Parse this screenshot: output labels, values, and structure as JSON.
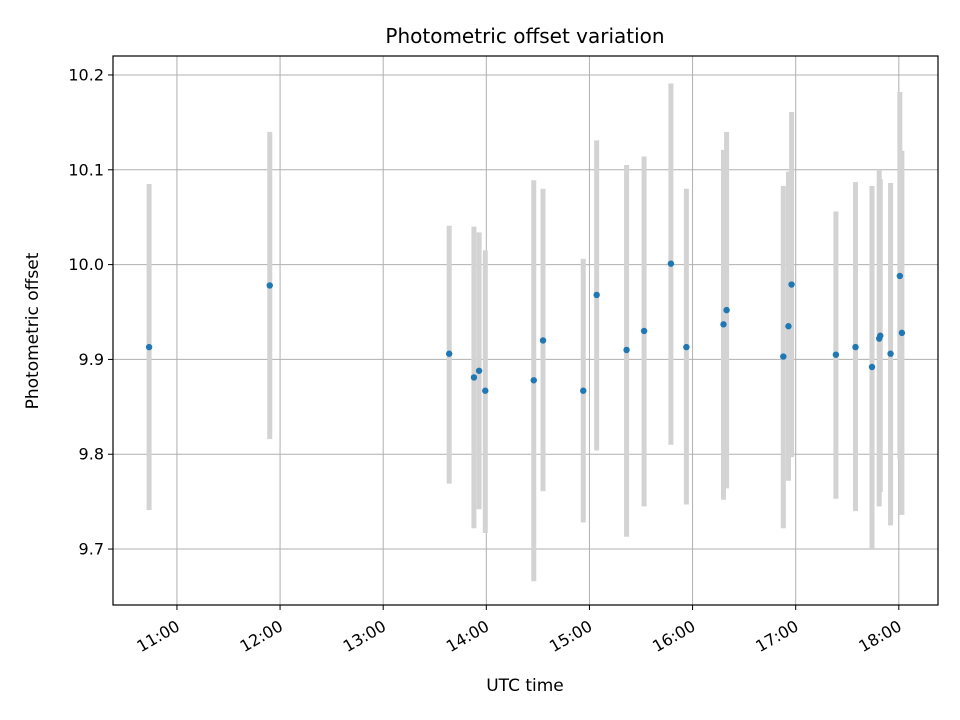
{
  "chart_data": {
    "type": "scatter",
    "title": "Photometric offset variation",
    "xlabel": "UTC time",
    "ylabel": "Photometric offset",
    "x_unit": "hours UTC",
    "xlim": [
      10.38,
      18.38
    ],
    "ylim": [
      9.641,
      10.22
    ],
    "grid": true,
    "colors": {
      "point": "#1f77b4",
      "errorbar": "#d3d3d3",
      "grid": "#b0b0b0"
    },
    "x_ticks": [
      {
        "value": 11,
        "label": "11:00"
      },
      {
        "value": 12,
        "label": "12:00"
      },
      {
        "value": 13,
        "label": "13:00"
      },
      {
        "value": 14,
        "label": "14:00"
      },
      {
        "value": 15,
        "label": "15:00"
      },
      {
        "value": 16,
        "label": "16:00"
      },
      {
        "value": 17,
        "label": "17:00"
      },
      {
        "value": 18,
        "label": "18:00"
      }
    ],
    "y_ticks": [
      {
        "value": 9.7,
        "label": "9.7"
      },
      {
        "value": 9.8,
        "label": "9.8"
      },
      {
        "value": 9.9,
        "label": "9.9"
      },
      {
        "value": 10.0,
        "label": "10.0"
      },
      {
        "value": 10.1,
        "label": "10.1"
      },
      {
        "value": 10.2,
        "label": "10.2"
      }
    ],
    "points": [
      {
        "x": 10.73,
        "y": 9.913,
        "lo": 9.741,
        "hi": 10.085
      },
      {
        "x": 11.9,
        "y": 9.978,
        "lo": 9.816,
        "hi": 10.14
      },
      {
        "x": 13.64,
        "y": 9.906,
        "lo": 9.769,
        "hi": 10.041
      },
      {
        "x": 13.88,
        "y": 9.881,
        "lo": 9.722,
        "hi": 10.04
      },
      {
        "x": 13.93,
        "y": 9.888,
        "lo": 9.742,
        "hi": 10.034
      },
      {
        "x": 13.99,
        "y": 9.867,
        "lo": 9.717,
        "hi": 10.015
      },
      {
        "x": 14.46,
        "y": 9.878,
        "lo": 9.666,
        "hi": 10.089
      },
      {
        "x": 14.55,
        "y": 9.92,
        "lo": 9.761,
        "hi": 10.08
      },
      {
        "x": 14.94,
        "y": 9.867,
        "lo": 9.728,
        "hi": 10.006
      },
      {
        "x": 15.07,
        "y": 9.968,
        "lo": 9.804,
        "hi": 10.131
      },
      {
        "x": 15.36,
        "y": 9.91,
        "lo": 9.713,
        "hi": 10.105
      },
      {
        "x": 15.53,
        "y": 9.93,
        "lo": 9.745,
        "hi": 10.114
      },
      {
        "x": 15.79,
        "y": 10.001,
        "lo": 9.81,
        "hi": 10.191
      },
      {
        "x": 15.94,
        "y": 9.913,
        "lo": 9.747,
        "hi": 10.08
      },
      {
        "x": 16.3,
        "y": 9.937,
        "lo": 9.752,
        "hi": 10.121
      },
      {
        "x": 16.33,
        "y": 9.952,
        "lo": 9.764,
        "hi": 10.14
      },
      {
        "x": 16.88,
        "y": 9.903,
        "lo": 9.722,
        "hi": 10.083
      },
      {
        "x": 16.93,
        "y": 9.935,
        "lo": 9.772,
        "hi": 10.098
      },
      {
        "x": 16.96,
        "y": 9.979,
        "lo": 9.797,
        "hi": 10.161
      },
      {
        "x": 17.39,
        "y": 9.905,
        "lo": 9.753,
        "hi": 10.056
      },
      {
        "x": 17.58,
        "y": 9.913,
        "lo": 9.74,
        "hi": 10.087
      },
      {
        "x": 17.74,
        "y": 9.892,
        "lo": 9.701,
        "hi": 10.083
      },
      {
        "x": 17.81,
        "y": 9.922,
        "lo": 9.745,
        "hi": 10.1
      },
      {
        "x": 17.82,
        "y": 9.925,
        "lo": 9.76,
        "hi": 10.09
      },
      {
        "x": 17.92,
        "y": 9.906,
        "lo": 9.725,
        "hi": 10.086
      },
      {
        "x": 18.01,
        "y": 9.988,
        "lo": 9.795,
        "hi": 10.182
      },
      {
        "x": 18.03,
        "y": 9.928,
        "lo": 9.736,
        "hi": 10.12
      }
    ]
  }
}
